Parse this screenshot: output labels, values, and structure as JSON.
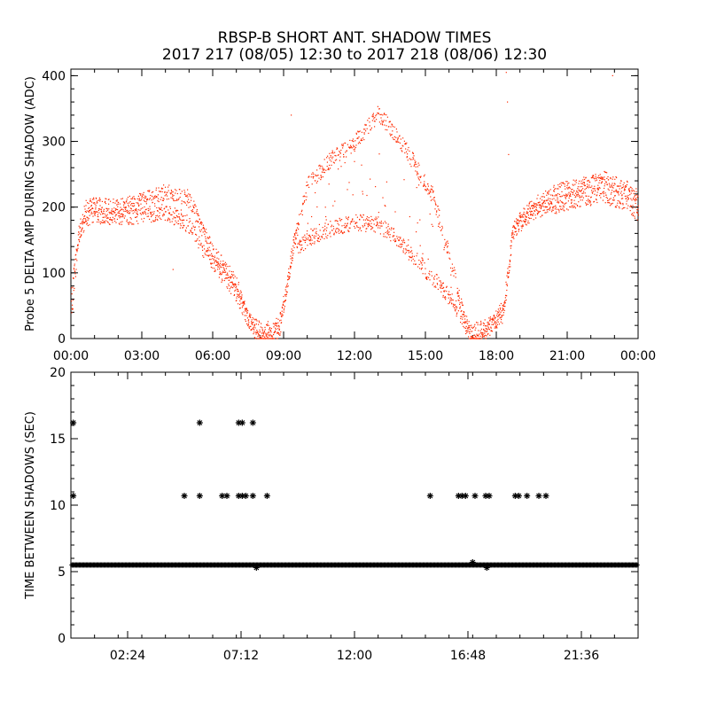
{
  "title_line1": "RBSP-B SHORT ANT. SHADOW TIMES",
  "title_line2": "2017 217 (08/05) 12:30 to 2017 218 (08/06) 12:30",
  "colors": {
    "top_series": "#ff2a00",
    "bottom_series": "#000000",
    "axes": "#000000"
  },
  "chart_data": [
    {
      "type": "scatter",
      "title": "",
      "xlabel": "",
      "ylabel": "Probe 5 DELTA AMP DURING SHADOW (ADC)",
      "xlim": [
        0,
        24
      ],
      "ylim": [
        0,
        410
      ],
      "x_tick_labels": [
        "00:00",
        "03:00",
        "06:00",
        "09:00",
        "12:00",
        "15:00",
        "18:00",
        "21:00",
        "00:00"
      ],
      "x_tick_hours": [
        0,
        3,
        6,
        9,
        12,
        15,
        18,
        21,
        24
      ],
      "y_tick_labels": [
        "0",
        "100",
        "200",
        "300",
        "400"
      ],
      "y_tick_values": [
        0,
        100,
        200,
        300,
        400
      ],
      "series": [
        {
          "envelope_upper": [
            [
              0,
              80
            ],
            [
              0.3,
              170
            ],
            [
              0.6,
              210
            ],
            [
              1.0,
              215
            ],
            [
              2.0,
              212
            ],
            [
              3.0,
              222
            ],
            [
              4.0,
              236
            ],
            [
              5.0,
              226
            ],
            [
              5.5,
              180
            ],
            [
              6.0,
              145
            ],
            [
              6.5,
              120
            ],
            [
              7.0,
              95
            ],
            [
              7.5,
              40
            ],
            [
              8.0,
              5
            ],
            [
              8.5,
              12
            ],
            [
              8.8,
              22
            ],
            [
              9.4,
              155
            ],
            [
              10.0,
              245
            ],
            [
              11.0,
              285
            ],
            [
              12.0,
              310
            ],
            [
              13.0,
              355
            ],
            [
              13.8,
              320
            ],
            [
              14.5,
              280
            ],
            [
              15.3,
              230
            ],
            [
              16.0,
              140
            ],
            [
              16.7,
              30
            ],
            [
              17.0,
              5
            ],
            [
              17.4,
              10
            ],
            [
              17.8,
              35
            ],
            [
              18.3,
              60
            ],
            [
              18.7,
              180
            ],
            [
              19.5,
              215
            ],
            [
              20.5,
              235
            ],
            [
              21.5,
              245
            ],
            [
              22.5,
              255
            ],
            [
              23.5,
              240
            ],
            [
              24,
              225
            ]
          ],
          "envelope_lower": [
            [
              0,
              20
            ],
            [
              0.3,
              140
            ],
            [
              0.6,
              170
            ],
            [
              1.0,
              175
            ],
            [
              2.0,
              172
            ],
            [
              3.0,
              175
            ],
            [
              4.0,
              180
            ],
            [
              5.0,
              160
            ],
            [
              5.5,
              125
            ],
            [
              6.0,
              100
            ],
            [
              6.5,
              80
            ],
            [
              7.0,
              55
            ],
            [
              7.5,
              15
            ],
            [
              8.0,
              0
            ],
            [
              8.5,
              3
            ],
            [
              8.8,
              8
            ],
            [
              9.4,
              120
            ],
            [
              10.0,
              140
            ],
            [
              11.0,
              155
            ],
            [
              12.0,
              165
            ],
            [
              13.0,
              160
            ],
            [
              13.8,
              140
            ],
            [
              14.5,
              110
            ],
            [
              15.3,
              80
            ],
            [
              16.0,
              50
            ],
            [
              16.7,
              10
            ],
            [
              17.0,
              0
            ],
            [
              17.4,
              2
            ],
            [
              17.8,
              10
            ],
            [
              18.3,
              25
            ],
            [
              18.7,
              150
            ],
            [
              19.5,
              180
            ],
            [
              20.5,
              190
            ],
            [
              21.5,
              200
            ],
            [
              22.5,
              205
            ],
            [
              23.5,
              195
            ],
            [
              24,
              175
            ]
          ]
        }
      ]
    },
    {
      "type": "scatter",
      "title": "",
      "xlabel": "",
      "ylabel": "TIME BETWEEN SHADOWS (SEC)",
      "xlim": [
        0,
        24
      ],
      "ylim": [
        0,
        20
      ],
      "x_tick_labels": [
        "02:24",
        "07:12",
        "12:00",
        "16:48",
        "21:36"
      ],
      "x_tick_hours": [
        2.4,
        7.2,
        12.0,
        16.8,
        21.6
      ],
      "y_tick_labels": [
        "0",
        "5",
        "10",
        "15",
        "20"
      ],
      "y_tick_values": [
        0,
        5,
        10,
        15,
        20
      ],
      "baseline_value": 5.5,
      "baseline_range": [
        0.05,
        24
      ],
      "series": [
        {
          "points": [
            [
              0.1,
              16.2
            ],
            [
              0.1,
              10.7
            ],
            [
              4.8,
              10.7
            ],
            [
              5.45,
              16.2
            ],
            [
              5.45,
              10.7
            ],
            [
              6.4,
              10.7
            ],
            [
              6.6,
              10.7
            ],
            [
              7.1,
              16.2
            ],
            [
              7.25,
              16.2
            ],
            [
              7.1,
              10.7
            ],
            [
              7.25,
              10.7
            ],
            [
              7.4,
              10.7
            ],
            [
              7.7,
              16.2
            ],
            [
              7.7,
              10.7
            ],
            [
              8.3,
              10.7
            ],
            [
              15.2,
              10.7
            ],
            [
              16.4,
              10.7
            ],
            [
              16.55,
              10.7
            ],
            [
              16.7,
              10.7
            ],
            [
              17.1,
              10.7
            ],
            [
              17.55,
              10.7
            ],
            [
              17.7,
              10.7
            ],
            [
              18.8,
              10.7
            ],
            [
              18.95,
              10.7
            ],
            [
              19.3,
              10.7
            ],
            [
              19.8,
              10.7
            ],
            [
              20.1,
              10.7
            ],
            [
              17.0,
              5.7
            ],
            [
              17.6,
              5.3
            ],
            [
              7.85,
              5.3
            ]
          ]
        }
      ]
    }
  ]
}
